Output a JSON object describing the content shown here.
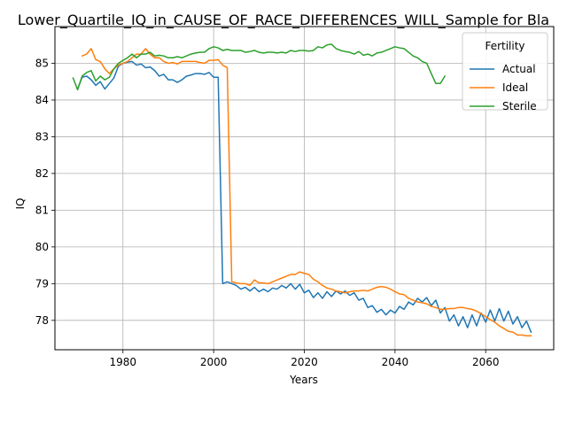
{
  "chart_data": {
    "type": "line",
    "title": "Lower_Quartile_IQ_in_CAUSE_OF_RACE_DIFFERENCES_WILL_Sample for Bla",
    "xlabel": "Years",
    "ylabel": "IQ",
    "xlim": [
      1965,
      2075
    ],
    "ylim": [
      77.2,
      86.0
    ],
    "xticks": [
      1980,
      2000,
      2020,
      2040,
      2060
    ],
    "yticks": [
      78,
      79,
      80,
      81,
      82,
      83,
      84,
      85
    ],
    "grid": true,
    "legend": {
      "title": "Fertility",
      "placement": "top-right"
    },
    "series": [
      {
        "name": "Actual",
        "color": "#1f77b4",
        "x": [
          1970,
          1971,
          1972,
          1973,
          1974,
          1975,
          1976,
          1977,
          1978,
          1979,
          1980,
          1981,
          1982,
          1983,
          1984,
          1985,
          1986,
          1987,
          1988,
          1989,
          1990,
          1991,
          1992,
          1993,
          1994,
          1995,
          1996,
          1997,
          1998,
          1999,
          2000,
          2001,
          2002,
          2003,
          2004,
          2005,
          2006,
          2007,
          2008,
          2009,
          2010,
          2011,
          2012,
          2013,
          2014,
          2015,
          2016,
          2017,
          2018,
          2019,
          2020,
          2021,
          2022,
          2023,
          2024,
          2025,
          2026,
          2027,
          2028,
          2029,
          2030,
          2031,
          2032,
          2033,
          2034,
          2035,
          2036,
          2037,
          2038,
          2039,
          2040,
          2041,
          2042,
          2043,
          2044,
          2045,
          2046,
          2047,
          2048,
          2049,
          2050,
          2051,
          2052,
          2053,
          2054,
          2055,
          2056,
          2057,
          2058,
          2059,
          2060,
          2061,
          2062,
          2063,
          2064,
          2065,
          2066,
          2067,
          2068,
          2069,
          2070
        ],
        "y": [
          84.3,
          84.62,
          84.65,
          84.55,
          84.4,
          84.5,
          84.3,
          84.45,
          84.6,
          84.92,
          85.0,
          85.03,
          85.05,
          84.95,
          84.98,
          84.88,
          84.9,
          84.8,
          84.65,
          84.7,
          84.55,
          84.55,
          84.48,
          84.55,
          84.65,
          84.68,
          84.72,
          84.72,
          84.7,
          84.75,
          84.62,
          84.62,
          79.0,
          79.05,
          79.0,
          78.95,
          78.85,
          78.9,
          78.8,
          78.9,
          78.78,
          78.85,
          78.78,
          78.88,
          78.85,
          78.95,
          78.88,
          79.0,
          78.85,
          78.98,
          78.75,
          78.82,
          78.62,
          78.75,
          78.6,
          78.78,
          78.65,
          78.8,
          78.72,
          78.8,
          78.68,
          78.75,
          78.55,
          78.6,
          78.35,
          78.4,
          78.22,
          78.3,
          78.15,
          78.28,
          78.2,
          78.38,
          78.3,
          78.5,
          78.42,
          78.6,
          78.5,
          78.62,
          78.4,
          78.55,
          78.2,
          78.35,
          77.98,
          78.15,
          77.85,
          78.1,
          77.8,
          78.15,
          77.85,
          78.2,
          77.95,
          78.28,
          77.98,
          78.32,
          77.98,
          78.25,
          77.9,
          78.1,
          77.8,
          77.98,
          77.68
        ]
      },
      {
        "name": "Ideal",
        "color": "#ff7f0e",
        "x": [
          1971,
          1972,
          1973,
          1974,
          1975,
          1976,
          1977,
          1978,
          1979,
          1980,
          1981,
          1982,
          1983,
          1984,
          1985,
          1986,
          1987,
          1988,
          1989,
          1990,
          1991,
          1992,
          1993,
          1994,
          1995,
          1996,
          1997,
          1998,
          1999,
          2000,
          2001,
          2002,
          2003,
          2004,
          2005,
          2006,
          2007,
          2008,
          2009,
          2010,
          2011,
          2012,
          2013,
          2014,
          2015,
          2016,
          2017,
          2018,
          2019,
          2020,
          2021,
          2022,
          2023,
          2024,
          2025,
          2026,
          2027,
          2028,
          2029,
          2030,
          2031,
          2032,
          2033,
          2034,
          2035,
          2036,
          2037,
          2038,
          2039,
          2040,
          2041,
          2042,
          2043,
          2044,
          2045,
          2046,
          2047,
          2048,
          2049,
          2050,
          2051,
          2052,
          2053,
          2054,
          2055,
          2056,
          2057,
          2058,
          2059,
          2060,
          2061,
          2062,
          2063,
          2064,
          2065,
          2066,
          2067,
          2068,
          2069,
          2070
        ],
        "y": [
          85.2,
          85.25,
          85.4,
          85.1,
          85.05,
          84.85,
          84.72,
          84.85,
          84.95,
          85.0,
          85.05,
          85.15,
          85.25,
          85.25,
          85.4,
          85.25,
          85.15,
          85.15,
          85.05,
          85.0,
          85.02,
          84.98,
          85.05,
          85.05,
          85.05,
          85.05,
          85.02,
          85.0,
          85.08,
          85.08,
          85.1,
          84.95,
          84.88,
          79.05,
          79.02,
          79.0,
          79.0,
          78.95,
          79.1,
          79.02,
          79.02,
          79.0,
          79.05,
          79.1,
          79.15,
          79.2,
          79.25,
          79.25,
          79.32,
          79.28,
          79.25,
          79.12,
          79.05,
          78.95,
          78.88,
          78.85,
          78.8,
          78.78,
          78.75,
          78.78,
          78.8,
          78.8,
          78.82,
          78.8,
          78.85,
          78.9,
          78.92,
          78.9,
          78.85,
          78.78,
          78.72,
          78.7,
          78.6,
          78.55,
          78.5,
          78.48,
          78.45,
          78.38,
          78.35,
          78.3,
          78.3,
          78.32,
          78.32,
          78.35,
          78.35,
          78.32,
          78.3,
          78.25,
          78.18,
          78.1,
          78.02,
          77.95,
          77.85,
          77.78,
          77.7,
          77.68,
          77.6,
          77.6,
          77.58,
          77.58
        ]
      },
      {
        "name": "Sterile",
        "color": "#2ca02c",
        "x": [
          1969,
          1970,
          1971,
          1972,
          1973,
          1974,
          1975,
          1976,
          1977,
          1978,
          1979,
          1980,
          1981,
          1982,
          1983,
          1984,
          1985,
          1986,
          1987,
          1988,
          1989,
          1990,
          1991,
          1992,
          1993,
          1994,
          1995,
          1996,
          1997,
          1998,
          1999,
          2000,
          2001,
          2002,
          2003,
          2004,
          2005,
          2006,
          2007,
          2008,
          2009,
          2010,
          2011,
          2012,
          2013,
          2014,
          2015,
          2016,
          2017,
          2018,
          2019,
          2020,
          2021,
          2022,
          2023,
          2024,
          2025,
          2026,
          2027,
          2028,
          2029,
          2030,
          2031,
          2032,
          2033,
          2034,
          2035,
          2036,
          2037,
          2038,
          2039,
          2040,
          2041,
          2042,
          2043,
          2044,
          2045,
          2046,
          2047,
          2048,
          2049,
          2050,
          2051
        ],
        "y": [
          84.6,
          84.28,
          84.65,
          84.75,
          84.8,
          84.52,
          84.65,
          84.55,
          84.62,
          84.85,
          85.0,
          85.08,
          85.15,
          85.25,
          85.15,
          85.25,
          85.25,
          85.3,
          85.2,
          85.22,
          85.2,
          85.15,
          85.15,
          85.18,
          85.15,
          85.2,
          85.25,
          85.28,
          85.3,
          85.3,
          85.4,
          85.45,
          85.42,
          85.35,
          85.38,
          85.35,
          85.35,
          85.35,
          85.3,
          85.32,
          85.35,
          85.3,
          85.28,
          85.3,
          85.3,
          85.28,
          85.3,
          85.28,
          85.35,
          85.32,
          85.35,
          85.35,
          85.33,
          85.35,
          85.45,
          85.42,
          85.5,
          85.52,
          85.4,
          85.35,
          85.32,
          85.3,
          85.25,
          85.32,
          85.22,
          85.25,
          85.2,
          85.28,
          85.3,
          85.35,
          85.4,
          85.45,
          85.42,
          85.4,
          85.3,
          85.2,
          85.15,
          85.05,
          85.0,
          84.72,
          84.45,
          84.45,
          84.65
        ]
      }
    ]
  }
}
